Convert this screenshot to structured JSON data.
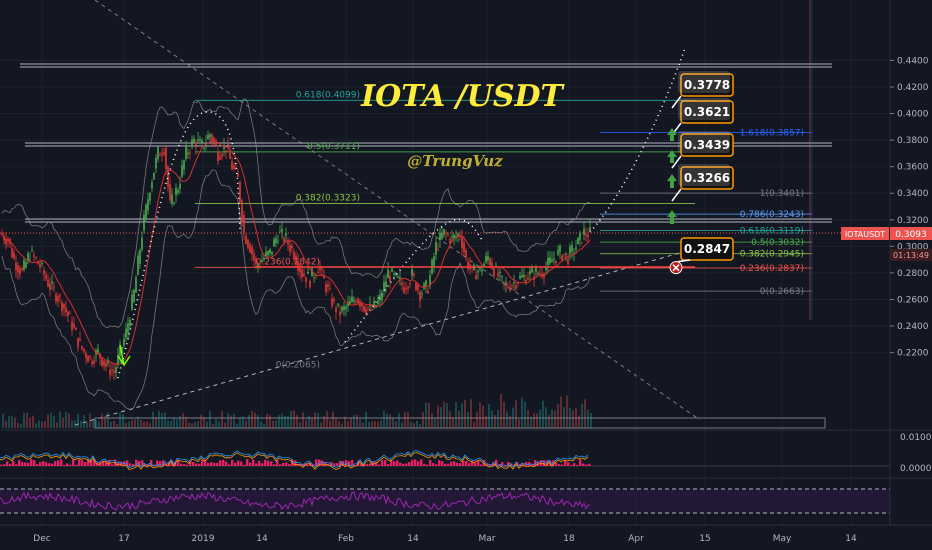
{
  "chart_data": {
    "type": "candlestick",
    "title": "IOTA /USDT",
    "watermark": "@TrungVuz",
    "symbol": "IOTAUSDT",
    "last_price": "0.3093",
    "countdown": "01:13:49",
    "y_axis": {
      "range": [
        0.18,
        0.445
      ],
      "ticks": [
        "0.2200",
        "0.2400",
        "0.2600",
        "0.2800",
        "0.3000",
        "0.3200",
        "0.3400",
        "0.3600",
        "0.3800",
        "0.4000",
        "0.4200",
        "0.4400"
      ]
    },
    "x_axis": {
      "labels": [
        "Dec",
        "17",
        "2019",
        "14",
        "Feb",
        "14",
        "Mar",
        "18",
        "Apr",
        "15",
        "May",
        "14"
      ]
    },
    "price_path": [
      [
        0,
        0.31
      ],
      [
        8,
        0.305
      ],
      [
        14,
        0.29
      ],
      [
        22,
        0.28
      ],
      [
        30,
        0.295
      ],
      [
        40,
        0.285
      ],
      [
        50,
        0.27
      ],
      [
        60,
        0.26
      ],
      [
        70,
        0.245
      ],
      [
        80,
        0.225
      ],
      [
        90,
        0.215
      ],
      [
        98,
        0.22
      ],
      [
        106,
        0.21
      ],
      [
        114,
        0.205
      ],
      [
        120,
        0.22
      ],
      [
        126,
        0.235
      ],
      [
        134,
        0.265
      ],
      [
        142,
        0.31
      ],
      [
        150,
        0.345
      ],
      [
        158,
        0.37
      ],
      [
        164,
        0.375
      ],
      [
        170,
        0.33
      ],
      [
        178,
        0.345
      ],
      [
        186,
        0.37
      ],
      [
        194,
        0.38
      ],
      [
        202,
        0.375
      ],
      [
        210,
        0.385
      ],
      [
        218,
        0.37
      ],
      [
        226,
        0.375
      ],
      [
        232,
        0.36
      ],
      [
        238,
        0.35
      ],
      [
        244,
        0.31
      ],
      [
        250,
        0.3
      ],
      [
        256,
        0.285
      ],
      [
        262,
        0.29
      ],
      [
        270,
        0.295
      ],
      [
        278,
        0.31
      ],
      [
        286,
        0.305
      ],
      [
        294,
        0.295
      ],
      [
        302,
        0.28
      ],
      [
        310,
        0.275
      ],
      [
        318,
        0.285
      ],
      [
        326,
        0.27
      ],
      [
        334,
        0.255
      ],
      [
        340,
        0.25
      ],
      [
        348,
        0.255
      ],
      [
        356,
        0.262
      ],
      [
        364,
        0.255
      ],
      [
        372,
        0.252
      ],
      [
        380,
        0.26
      ],
      [
        388,
        0.28
      ],
      [
        396,
        0.275
      ],
      [
        404,
        0.27
      ],
      [
        412,
        0.278
      ],
      [
        420,
        0.265
      ],
      [
        428,
        0.27
      ],
      [
        436,
        0.3
      ],
      [
        444,
        0.31
      ],
      [
        452,
        0.305
      ],
      [
        460,
        0.31
      ],
      [
        466,
        0.29
      ],
      [
        472,
        0.28
      ],
      [
        480,
        0.282
      ],
      [
        488,
        0.292
      ],
      [
        496,
        0.28
      ],
      [
        504,
        0.27
      ],
      [
        512,
        0.272
      ],
      [
        520,
        0.276
      ],
      [
        528,
        0.278
      ],
      [
        536,
        0.28
      ],
      [
        544,
        0.282
      ],
      [
        552,
        0.29
      ],
      [
        560,
        0.295
      ],
      [
        568,
        0.292
      ],
      [
        576,
        0.3
      ],
      [
        584,
        0.31
      ],
      [
        590,
        0.3093
      ]
    ],
    "fib_right": [
      {
        "label": "1.618(0.3857)",
        "price": 0.3857,
        "color": "#2962ff"
      },
      {
        "label": "1(0.3401)",
        "price": 0.3401,
        "color": "#787b86"
      },
      {
        "label": "0.786(0.3243)",
        "price": 0.3243,
        "color": "#5b9cf6"
      },
      {
        "label": "0.618(0.3119)",
        "price": 0.3119,
        "color": "#26a69a"
      },
      {
        "label": "0.5(0.3032)",
        "price": 0.3032,
        "color": "#4caf50"
      },
      {
        "label": "0.382(0.2945)",
        "price": 0.2945,
        "color": "#8bc34a"
      },
      {
        "label": "0.236(0.2837)",
        "price": 0.2837,
        "color": "#ef5350"
      },
      {
        "label": "0(0.2663)",
        "price": 0.2663,
        "color": "#787b86"
      }
    ],
    "fib_left": [
      {
        "label": "0.618(0.4099)",
        "price": 0.4099,
        "color": "#26a69a"
      },
      {
        "label": "0.5(0.3711)",
        "price": 0.3711,
        "color": "#4caf50"
      },
      {
        "label": "0.382(0.3323)",
        "price": 0.3323,
        "color": "#8bc34a"
      },
      {
        "label": "0.236(0.2842)",
        "price": 0.2842,
        "color": "#ef5350"
      },
      {
        "label": "0(0.2065)",
        "price": 0.2065,
        "color": "#787b86"
      }
    ],
    "targets": [
      {
        "label": "0.3778",
        "price": 0.3778
      },
      {
        "label": "0.3621",
        "price": 0.3621
      },
      {
        "label": "0.3439",
        "price": 0.3439
      },
      {
        "label": "0.3266",
        "price": 0.3266
      }
    ],
    "stop": {
      "label": "0.2847",
      "price": 0.2847
    },
    "colors": {
      "background": "#131722",
      "bull": "#26a69a",
      "bear": "#ef5350",
      "candle_green": "#4caf50",
      "candle_red": "#e53935",
      "callout_bg": "#111111",
      "callout_border": "#ff9800",
      "title": "#ffeb3b",
      "watermark": "#c0b030",
      "price_tag": "#ef5350",
      "macd_hist": "#e91e63",
      "rsi": "#9c27b0",
      "arrow": "#43a047"
    }
  }
}
